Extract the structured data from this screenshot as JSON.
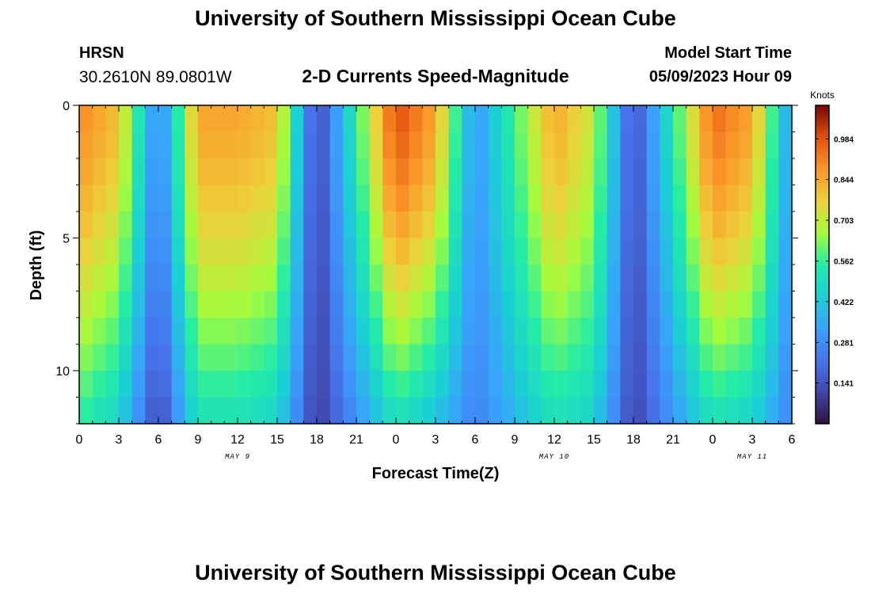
{
  "page": {
    "title": "University of Southern Mississippi Ocean Cube",
    "footer_title": "University of Southern Mississippi Ocean Cube",
    "station": {
      "id": "HRSN",
      "coords": "30.2610N  89.0801W"
    },
    "model_start": {
      "label": "Model Start Time",
      "value": "05/09/2023 Hour 09"
    }
  },
  "chart_data": {
    "type": "heatmap",
    "title": "2-D Currents Speed-Magnitude",
    "xlabel": "Forecast Time(Z)",
    "ylabel": "Depth (ft)",
    "x_start_hour": 0,
    "x_end_hour": 54,
    "x_step_hours": 1,
    "x_tick_labels": [
      "0",
      "3",
      "6",
      "9",
      "12",
      "15",
      "18",
      "21",
      "0",
      "3",
      "6",
      "9",
      "12",
      "15",
      "18",
      "21",
      "0",
      "3",
      "6"
    ],
    "x_tick_hours": [
      0,
      3,
      6,
      9,
      12,
      15,
      18,
      21,
      24,
      27,
      30,
      33,
      36,
      39,
      42,
      45,
      48,
      51,
      54
    ],
    "day_labels": [
      {
        "text": "MAY 9",
        "hour": 12
      },
      {
        "text": "MAY 10",
        "hour": 36
      },
      {
        "text": "MAY 11",
        "hour": 51
      }
    ],
    "ylim": [
      0,
      12
    ],
    "y_ticks": [
      0,
      5,
      10
    ],
    "depth_levels": [
      0.5,
      1.5,
      2.5,
      3.5,
      4.5,
      5.5,
      6.5,
      7.5,
      8.5,
      9.5,
      10.5,
      11.5
    ],
    "colorbar": {
      "title": "Knots",
      "min": 0,
      "max": 1.1,
      "tick_values": [
        0.984,
        0.844,
        0.703,
        0.562,
        0.422,
        0.281,
        0.141
      ],
      "tick_labels": [
        "0.984",
        "0.844",
        "0.703",
        "0.562",
        "0.422",
        "0.281",
        "0.141"
      ]
    },
    "series": [
      {
        "hour": 0,
        "surface": 0.9,
        "bottom": 0.55
      },
      {
        "hour": 3,
        "surface": 0.8,
        "bottom": 0.45
      },
      {
        "hour": 6,
        "surface": 0.25,
        "bottom": 0.1
      },
      {
        "hour": 9,
        "surface": 0.85,
        "bottom": 0.5
      },
      {
        "hour": 12,
        "surface": 0.85,
        "bottom": 0.5
      },
      {
        "hour": 15,
        "surface": 0.8,
        "bottom": 0.45
      },
      {
        "hour": 18,
        "surface": 0.1,
        "bottom": 0.08
      },
      {
        "hour": 24,
        "surface": 1.0,
        "bottom": 0.5
      },
      {
        "hour": 27,
        "surface": 0.85,
        "bottom": 0.4
      },
      {
        "hour": 30,
        "surface": 0.3,
        "bottom": 0.25
      },
      {
        "hour": 36,
        "surface": 0.85,
        "bottom": 0.5
      },
      {
        "hour": 39,
        "surface": 0.7,
        "bottom": 0.45
      },
      {
        "hour": 42,
        "surface": 0.12,
        "bottom": 0.1
      },
      {
        "hour": 48,
        "surface": 0.95,
        "bottom": 0.5
      },
      {
        "hour": 51,
        "surface": 0.85,
        "bottom": 0.45
      },
      {
        "hour": 54,
        "surface": 0.3,
        "bottom": 0.25
      }
    ]
  }
}
